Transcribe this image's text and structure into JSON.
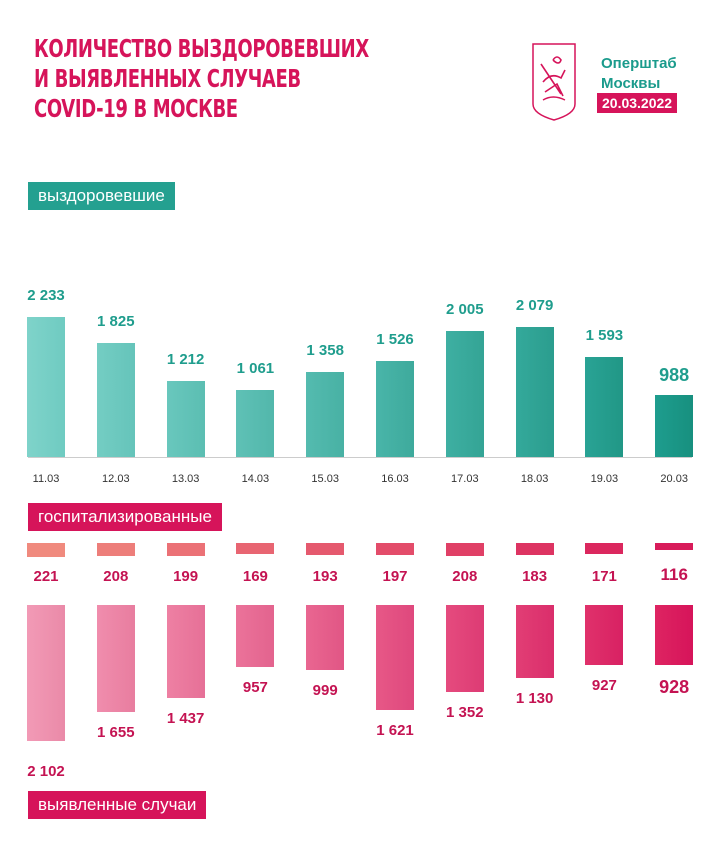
{
  "header": {
    "title_lines": [
      "КОЛИЧЕСТВО ВЫЗДОРОВЕВШИХ",
      "И ВЫЯВЛЕННЫХ СЛУЧАЕВ",
      "COVID-19 В МОСКВЕ"
    ],
    "brand_lines": [
      "Оперштаб",
      "Москвы"
    ],
    "date": "20.03.2022",
    "logo": "moscow-coat-of-arms"
  },
  "colors": {
    "title": "#d6145a",
    "teal": "#24a090",
    "pink": "#d6145a"
  },
  "chart_data": [
    {
      "type": "bar",
      "title": "выздоровевшие",
      "categories": [
        "11.03",
        "12.03",
        "13.03",
        "14.03",
        "15.03",
        "16.03",
        "17.03",
        "18.03",
        "19.03",
        "20.03"
      ],
      "values": [
        2233,
        1825,
        1212,
        1061,
        1358,
        1526,
        2005,
        2079,
        1593,
        988
      ],
      "labels": [
        "2 233",
        "1 825",
        "1 212",
        "1 061",
        "1 358",
        "1 526",
        "2 005",
        "2 079",
        "1 593",
        "988"
      ]
    },
    {
      "type": "bar",
      "title": "госпитализированные",
      "categories": [
        "11.03",
        "12.03",
        "13.03",
        "14.03",
        "15.03",
        "16.03",
        "17.03",
        "18.03",
        "19.03",
        "20.03"
      ],
      "values": [
        221,
        208,
        199,
        169,
        193,
        197,
        208,
        183,
        171,
        116
      ],
      "labels": [
        "221",
        "208",
        "199",
        "169",
        "193",
        "197",
        "208",
        "183",
        "171",
        "116"
      ]
    },
    {
      "type": "bar",
      "title": "выявленные случаи",
      "categories": [
        "11.03",
        "12.03",
        "13.03",
        "14.03",
        "15.03",
        "16.03",
        "17.03",
        "18.03",
        "19.03",
        "20.03"
      ],
      "values": [
        2102,
        1655,
        1437,
        957,
        999,
        1621,
        1352,
        1130,
        927,
        928
      ],
      "labels": [
        "2 102",
        "1 655",
        "1 437",
        "957",
        "999",
        "1 621",
        "1 352",
        "1 130",
        "927",
        "928"
      ]
    }
  ]
}
